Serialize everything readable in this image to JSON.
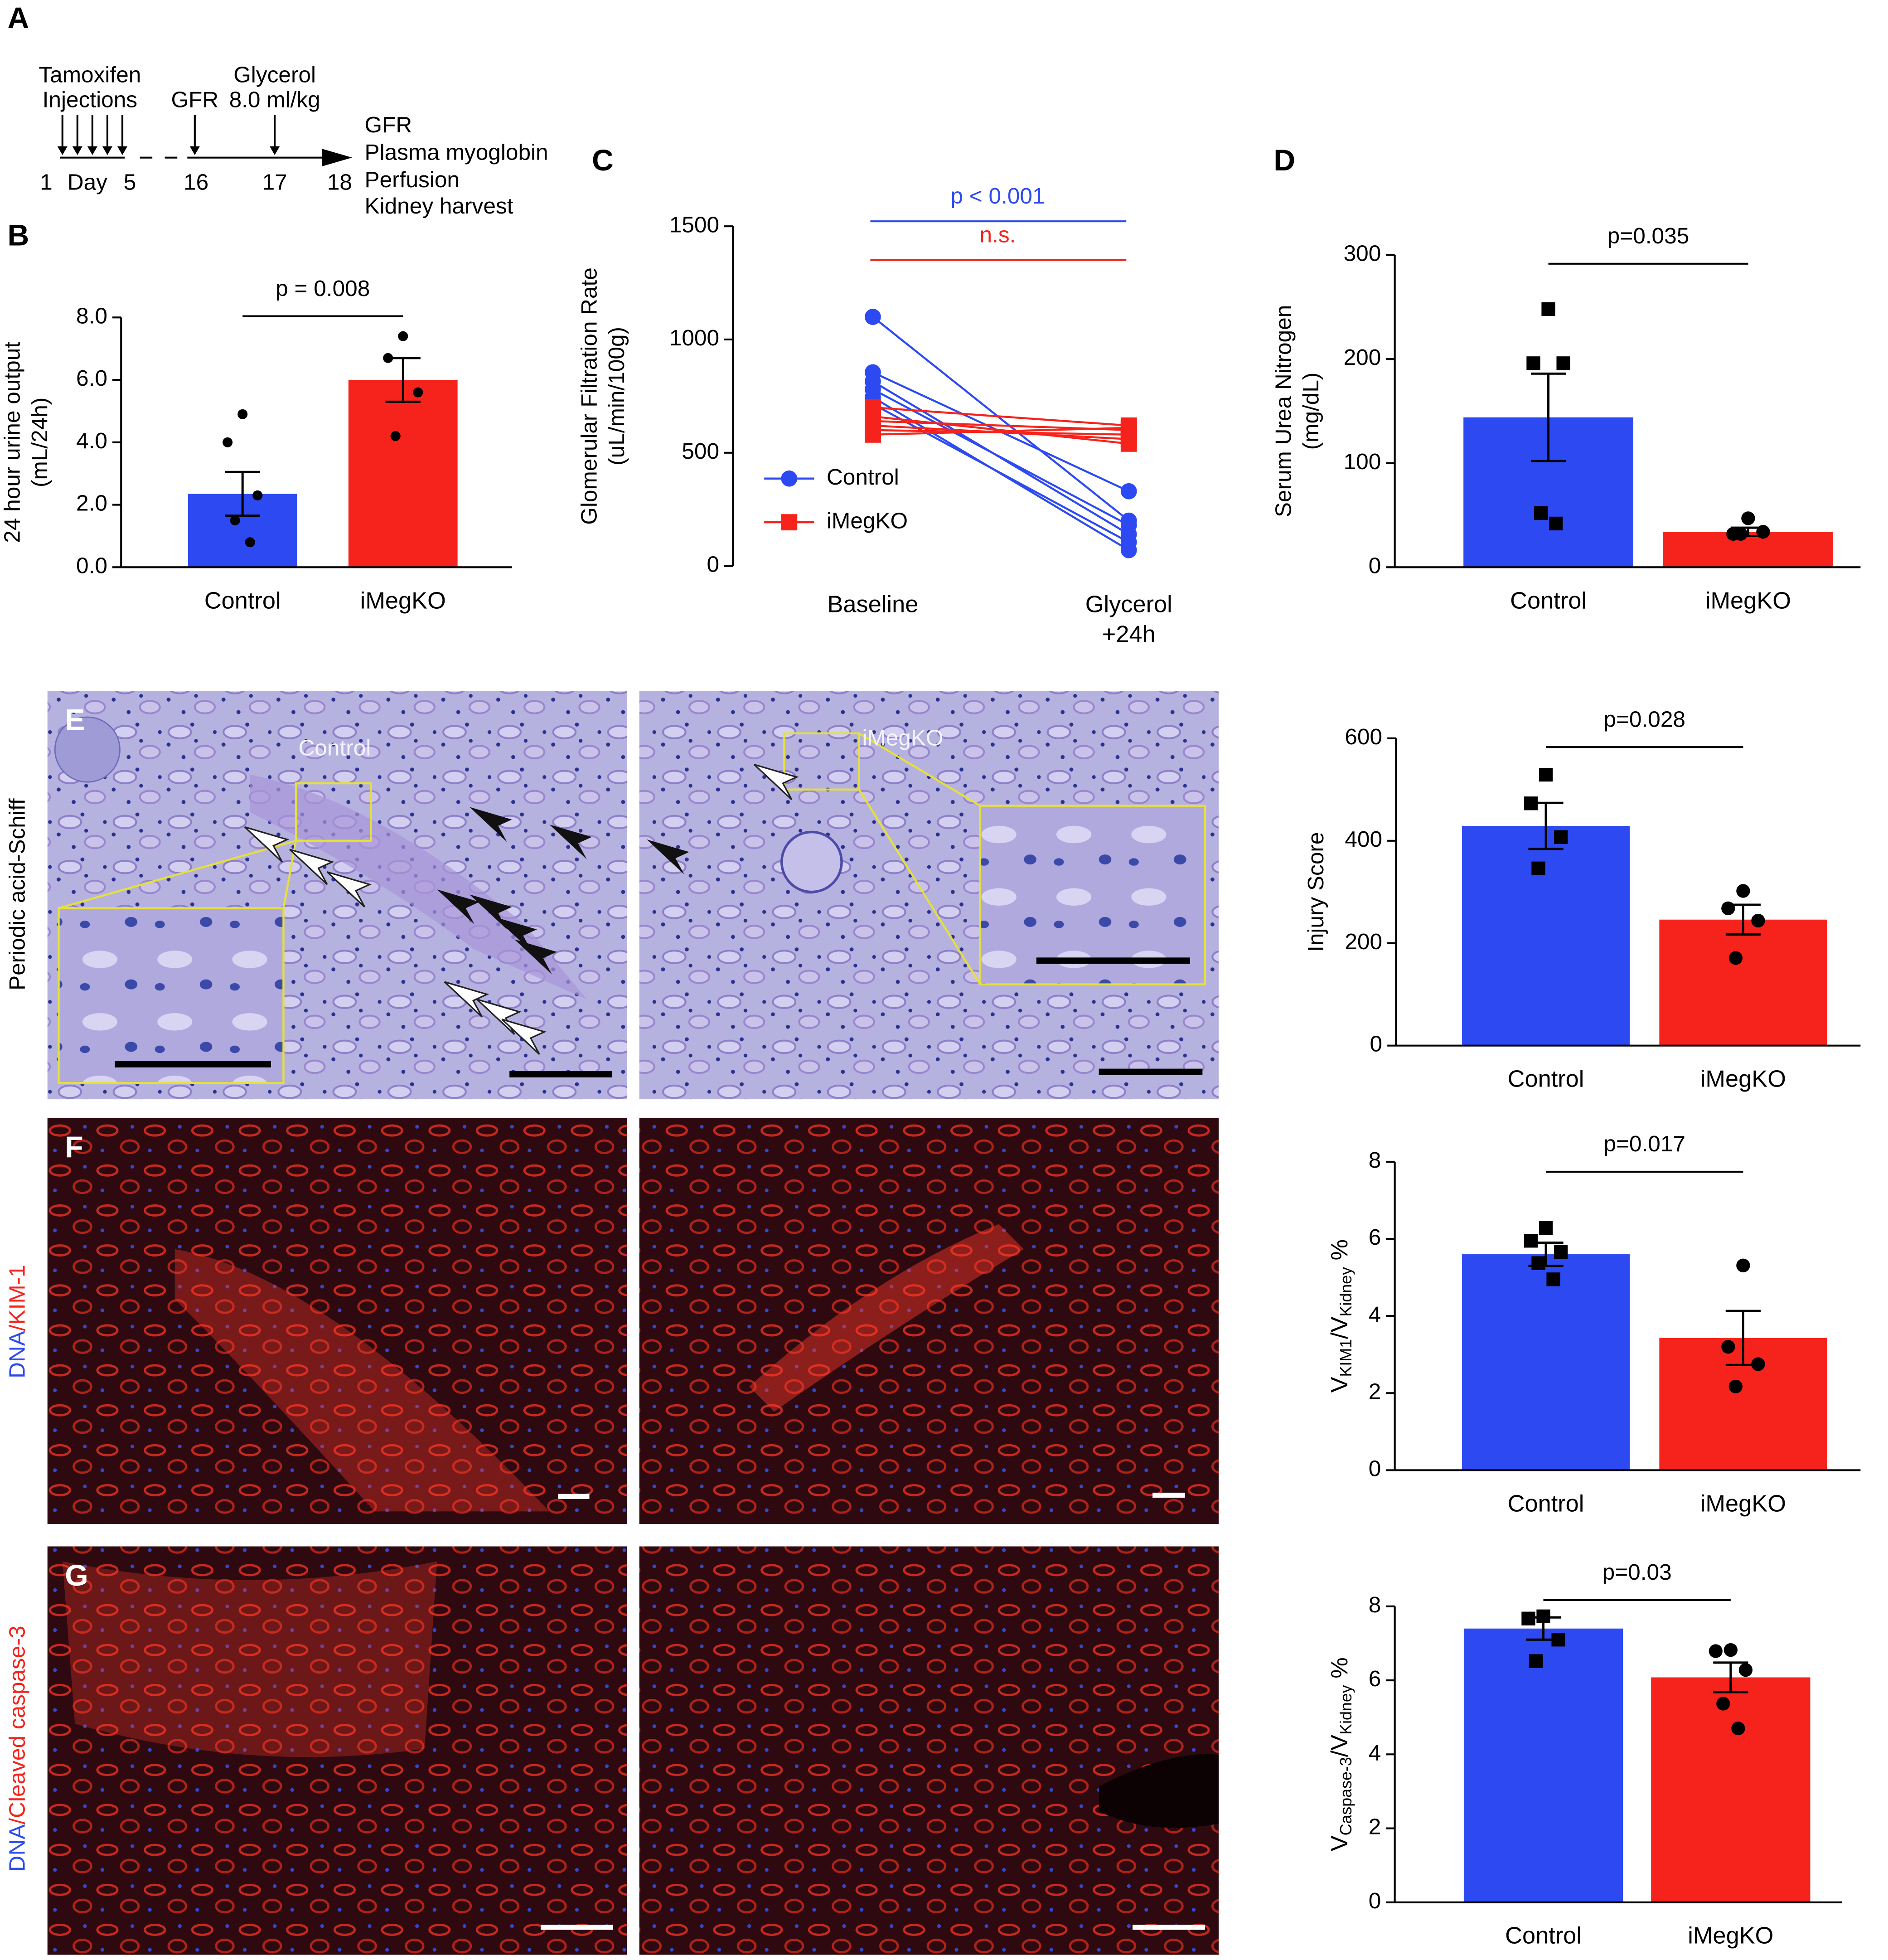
{
  "timeline": {
    "label": "A",
    "injection_label": [
      "Tamoxifen",
      "Injections"
    ],
    "gfr_label": "GFR",
    "glycerol_label": [
      "Glycerol",
      "8.0 ml/kg"
    ],
    "axis_labels": [
      "1",
      "Day",
      "5",
      "16",
      "17",
      "18"
    ],
    "outcomes": [
      "GFR",
      "Plasma myoglobin",
      "Perfusion",
      "Kidney harvest"
    ]
  },
  "images": [
    {
      "label": "E",
      "row_label": [
        "Periodic acid-Schiff"
      ],
      "row_label_colors": [
        "#000000"
      ],
      "left_title": "Control",
      "right_title": "iMegKO"
    },
    {
      "label": "F",
      "row_label": [
        "DNA",
        "/KIM-1"
      ],
      "row_label_colors": [
        "#2d4af2",
        "#f5231b"
      ]
    },
    {
      "label": "G",
      "row_label": [
        "DNA",
        "/Cleaved caspase-3"
      ],
      "row_label_colors": [
        "#2d4af2",
        "#f5231b"
      ]
    }
  ],
  "chart_data": [
    {
      "type": "bar",
      "label": "B",
      "ylabel": [
        "24 hour urine output",
        "(mL/24h)"
      ],
      "categories": [
        "Control",
        "iMegKO"
      ],
      "values": [
        2.35,
        6.0
      ],
      "errors": [
        0.7,
        0.7
      ],
      "points": [
        [
          4.9,
          4.0,
          2.3,
          1.5,
          0.8
        ],
        [
          7.4,
          6.7,
          5.6,
          4.2
        ]
      ],
      "colors": [
        "#2d4af2",
        "#f5231b"
      ],
      "markers": [
        "circle",
        "circle"
      ],
      "ylim": [
        0,
        8
      ],
      "yticks": [
        {
          "value": 0,
          "label": "0.0"
        },
        {
          "value": 2,
          "label": "2.0"
        },
        {
          "value": 4,
          "label": "4.0"
        },
        {
          "value": 6,
          "label": "6.0"
        },
        {
          "value": 8,
          "label": "8.0"
        }
      ],
      "annotation": "p = 0.008"
    },
    {
      "type": "line",
      "label": "C",
      "ylabel": [
        "Glomerular Filtration Rate",
        "(uL/min/100g)"
      ],
      "categories": [
        "Baseline",
        "Glycerol\n+24h"
      ],
      "series": [
        {
          "name": "Control",
          "color": "#2d4af2",
          "marker": "circle",
          "values": [
            [
              1100,
              200
            ],
            [
              855,
              330
            ],
            [
              815,
              140
            ],
            [
              780,
              180
            ],
            [
              745,
              70
            ],
            [
              715,
              105
            ]
          ]
        },
        {
          "name": "iMegKO",
          "color": "#f5231b",
          "marker": "square",
          "values": [
            [
              700,
              620
            ],
            [
              660,
              540
            ],
            [
              640,
              600
            ],
            [
              620,
              560
            ],
            [
              600,
              580
            ],
            [
              580,
              610
            ]
          ]
        }
      ],
      "ylim": [
        0,
        1500
      ],
      "yticks": [
        0,
        500,
        1000,
        1500
      ],
      "annotations": [
        {
          "text": "p < 0.001",
          "color": "#2d4af2"
        },
        {
          "text": "n.s.",
          "color": "#f5231b"
        }
      ]
    },
    {
      "type": "bar",
      "label": "D",
      "ylabel": [
        "Serum  Urea  Nitrogen",
        "(mg/dL)"
      ],
      "categories": [
        "Control",
        "iMegKO"
      ],
      "values": [
        144,
        34
      ],
      "errors": [
        42,
        4
      ],
      "points": [
        [
          248,
          196,
          196,
          52,
          42
        ],
        [
          47,
          32,
          34,
          32
        ]
      ],
      "colors": [
        "#2d4af2",
        "#f5231b"
      ],
      "markers": [
        "square",
        "circle"
      ],
      "ylim": [
        0,
        300
      ],
      "yticks": [
        0,
        100,
        200,
        300
      ],
      "annotation": "p=0.035"
    },
    {
      "type": "bar",
      "ylabel": [
        "Injury Score"
      ],
      "categories": [
        "Control",
        "iMegKO"
      ],
      "values": [
        429,
        246
      ],
      "errors": [
        45,
        29
      ],
      "points": [
        [
          529,
          473,
          407,
          346
        ],
        [
          302,
          268,
          244,
          171
        ]
      ],
      "colors": [
        "#2d4af2",
        "#f5231b"
      ],
      "markers": [
        "square",
        "circle"
      ],
      "ylim": [
        0,
        600
      ],
      "yticks": [
        0,
        200,
        400,
        600
      ],
      "annotation": "p=0.028"
    },
    {
      "type": "bar",
      "ylabel_parts": [
        "V",
        "KIM1",
        "/V",
        "Kidney",
        " %"
      ],
      "categories": [
        "Control",
        "iMegKO"
      ],
      "values": [
        5.6,
        3.43
      ],
      "errors": [
        0.3,
        0.7
      ],
      "points": [
        [
          6.28,
          5.95,
          5.66,
          5.37,
          4.95
        ],
        [
          5.31,
          3.2,
          2.75,
          2.17
        ]
      ],
      "colors": [
        "#2d4af2",
        "#f5231b"
      ],
      "markers": [
        "square",
        "circle"
      ],
      "ylim": [
        0,
        8
      ],
      "yticks": [
        0,
        2,
        4,
        6,
        8
      ],
      "annotation": "p=0.017"
    },
    {
      "type": "bar",
      "ylabel_parts": [
        "V",
        "Caspase-3",
        "/V",
        "Kidney",
        " %"
      ],
      "categories": [
        "Control",
        "iMegKO"
      ],
      "values": [
        7.4,
        6.08
      ],
      "errors": [
        0.3,
        0.4
      ],
      "points": [
        [
          7.73,
          7.67,
          7.1,
          6.52
        ],
        [
          6.82,
          6.79,
          6.28,
          5.37,
          4.7
        ]
      ],
      "colors": [
        "#2d4af2",
        "#f5231b"
      ],
      "markers": [
        "square",
        "circle"
      ],
      "ylim": [
        0,
        8
      ],
      "yticks": [
        0,
        2,
        4,
        6,
        8
      ],
      "annotation": "p=0.03"
    }
  ]
}
